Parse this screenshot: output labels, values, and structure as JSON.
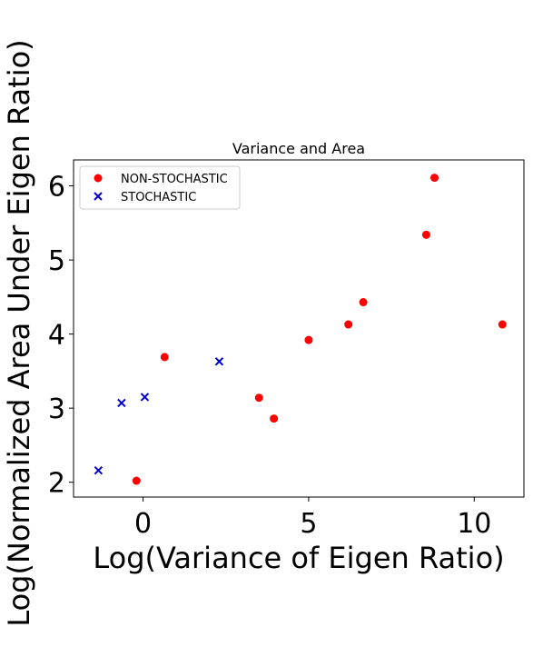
{
  "chart_data": {
    "type": "scatter",
    "title": "Variance and  Area",
    "xlabel": "Log(Variance of Eigen Ratio)",
    "ylabel": "Log(Normalized Area Under Eigen Ratio)",
    "xlim": [
      -2.1,
      11.5
    ],
    "ylim": [
      1.8,
      6.35
    ],
    "xticks": [
      0,
      5,
      10
    ],
    "yticks": [
      2,
      3,
      4,
      5,
      6
    ],
    "legend_position": "upper-left",
    "series": [
      {
        "name": "NON-STOCHASTIC",
        "marker": "circle",
        "color": "#ff0000",
        "points": [
          [
            -0.2,
            2.02
          ],
          [
            0.65,
            3.69
          ],
          [
            3.5,
            3.14
          ],
          [
            3.95,
            2.86
          ],
          [
            5.0,
            3.92
          ],
          [
            6.2,
            4.13
          ],
          [
            6.65,
            4.43
          ],
          [
            8.55,
            5.34
          ],
          [
            8.8,
            6.11
          ],
          [
            10.85,
            4.13
          ]
        ]
      },
      {
        "name": "STOCHASTIC",
        "marker": "x",
        "color": "#0000cc",
        "points": [
          [
            -1.35,
            2.16
          ],
          [
            -0.65,
            3.07
          ],
          [
            0.05,
            3.15
          ],
          [
            2.3,
            3.63
          ]
        ]
      }
    ]
  }
}
